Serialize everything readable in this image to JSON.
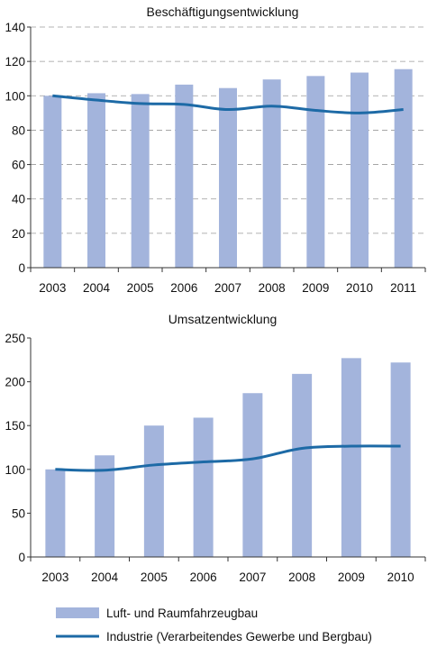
{
  "colors": {
    "bar": "#a3b4dc",
    "line": "#1d6aa6",
    "grid": "#9a9a9a",
    "axis": "#333333"
  },
  "chart_data": [
    {
      "type": "bar",
      "title": "Beschäftigungsentwicklung",
      "categories": [
        "2003",
        "2004",
        "2005",
        "2006",
        "2007",
        "2008",
        "2009",
        "2010",
        "2011"
      ],
      "ylim": [
        0,
        140
      ],
      "yticks": [
        0,
        20,
        40,
        60,
        80,
        100,
        120,
        140
      ],
      "grid": true,
      "series": [
        {
          "name": "Luft- und Raumfahrzeugbau",
          "type": "bar",
          "values": [
            100,
            101.5,
            101,
            106.5,
            104.5,
            109.5,
            111.5,
            113.5,
            115.5
          ]
        },
        {
          "name": "Industrie (Verarbeitendes Gewerbe und Bergbau)",
          "type": "line",
          "values": [
            100,
            97.5,
            95.5,
            95,
            92,
            94,
            91.5,
            90,
            92
          ]
        }
      ]
    },
    {
      "type": "bar",
      "title": "Umsatzentwicklung",
      "categories": [
        "2003",
        "2004",
        "2005",
        "2006",
        "2007",
        "2008",
        "2009",
        "2010"
      ],
      "ylim": [
        0,
        250
      ],
      "yticks": [
        0,
        50,
        100,
        150,
        200,
        250
      ],
      "grid": false,
      "series": [
        {
          "name": "Luft- und Raumfahrzeugbau",
          "type": "bar",
          "values": [
            100,
            116,
            150,
            159,
            187,
            209,
            227,
            222
          ]
        },
        {
          "name": "Industrie (Verarbeitendes Gewerbe und Bergbau)",
          "type": "line",
          "values": [
            100,
            99,
            105,
            108.5,
            112,
            124,
            126.5,
            126.5
          ]
        }
      ]
    }
  ],
  "legend": {
    "placement": "bottom",
    "items": [
      {
        "label": "Luft- und Raumfahrzeugbau",
        "kind": "bar"
      },
      {
        "label": "Industrie (Verarbeitendes Gewerbe und Bergbau)",
        "kind": "line"
      }
    ]
  }
}
